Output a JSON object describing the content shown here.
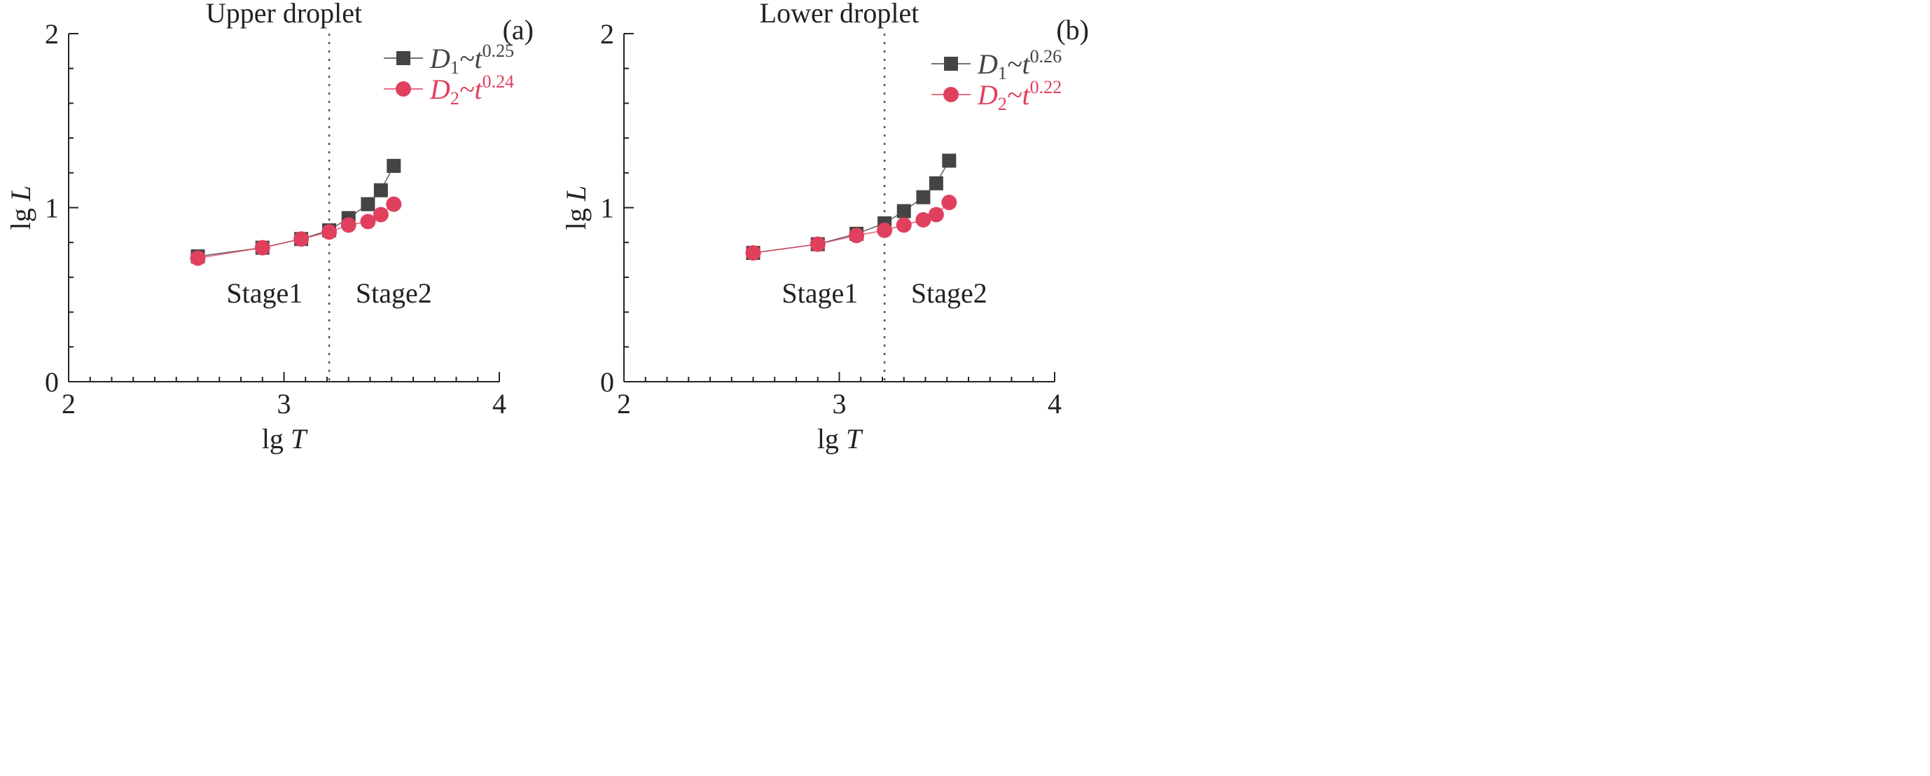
{
  "chart_data": [
    {
      "type": "line",
      "panel_label": "(a)",
      "title": "Upper droplet",
      "xlabel": "lg T",
      "ylabel": "lg L",
      "xlim": [
        2,
        4
      ],
      "ylim": [
        0,
        2
      ],
      "x_ticks": [
        "2",
        "3",
        "4"
      ],
      "y_ticks": [
        "0",
        "1",
        "2"
      ],
      "divider_x": 3.21,
      "stage_labels": [
        "Stage1",
        "Stage2"
      ],
      "legend_position": "top-right",
      "series": [
        {
          "name": "D1~t0.25",
          "name_main": "D",
          "name_sub": "1",
          "name_mid": "~t",
          "name_sup": "0.25",
          "color": "#444444",
          "marker": "square",
          "x": [
            2.6,
            2.9,
            3.08,
            3.21,
            3.3,
            3.39,
            3.45,
            3.51
          ],
          "y": [
            0.72,
            0.77,
            0.82,
            0.87,
            0.94,
            1.02,
            1.1,
            1.24
          ]
        },
        {
          "name": "D2~t0.24",
          "name_main": "D",
          "name_sub": "2",
          "name_mid": "~t",
          "name_sup": "0.24",
          "color": "#e0405e",
          "marker": "circle",
          "x": [
            2.6,
            2.9,
            3.08,
            3.21,
            3.3,
            3.39,
            3.45,
            3.51
          ],
          "y": [
            0.71,
            0.77,
            0.82,
            0.86,
            0.9,
            0.92,
            0.96,
            1.02
          ]
        }
      ]
    },
    {
      "type": "line",
      "panel_label": "(b)",
      "title": "Lower droplet",
      "xlabel": "lg T",
      "ylabel": "lg L",
      "xlim": [
        2,
        4
      ],
      "ylim": [
        0,
        2
      ],
      "x_ticks": [
        "2",
        "3",
        "4"
      ],
      "y_ticks": [
        "0",
        "1",
        "2"
      ],
      "divider_x": 3.21,
      "stage_labels": [
        "Stage1",
        "Stage2"
      ],
      "legend_position": "top-right",
      "series": [
        {
          "name": "D1~t0.26",
          "name_main": "D",
          "name_sub": "1",
          "name_mid": "~t",
          "name_sup": "0.26",
          "color": "#444444",
          "marker": "square",
          "x": [
            2.6,
            2.9,
            3.08,
            3.21,
            3.3,
            3.39,
            3.45,
            3.51
          ],
          "y": [
            0.74,
            0.79,
            0.85,
            0.91,
            0.98,
            1.06,
            1.14,
            1.27
          ]
        },
        {
          "name": "D2~t0.22",
          "name_main": "D",
          "name_sub": "2",
          "name_mid": "~t",
          "name_sup": "0.22",
          "color": "#e0405e",
          "marker": "circle",
          "x": [
            2.6,
            2.9,
            3.08,
            3.21,
            3.3,
            3.39,
            3.45,
            3.51
          ],
          "y": [
            0.74,
            0.79,
            0.84,
            0.87,
            0.9,
            0.93,
            0.96,
            1.03
          ]
        }
      ]
    }
  ]
}
